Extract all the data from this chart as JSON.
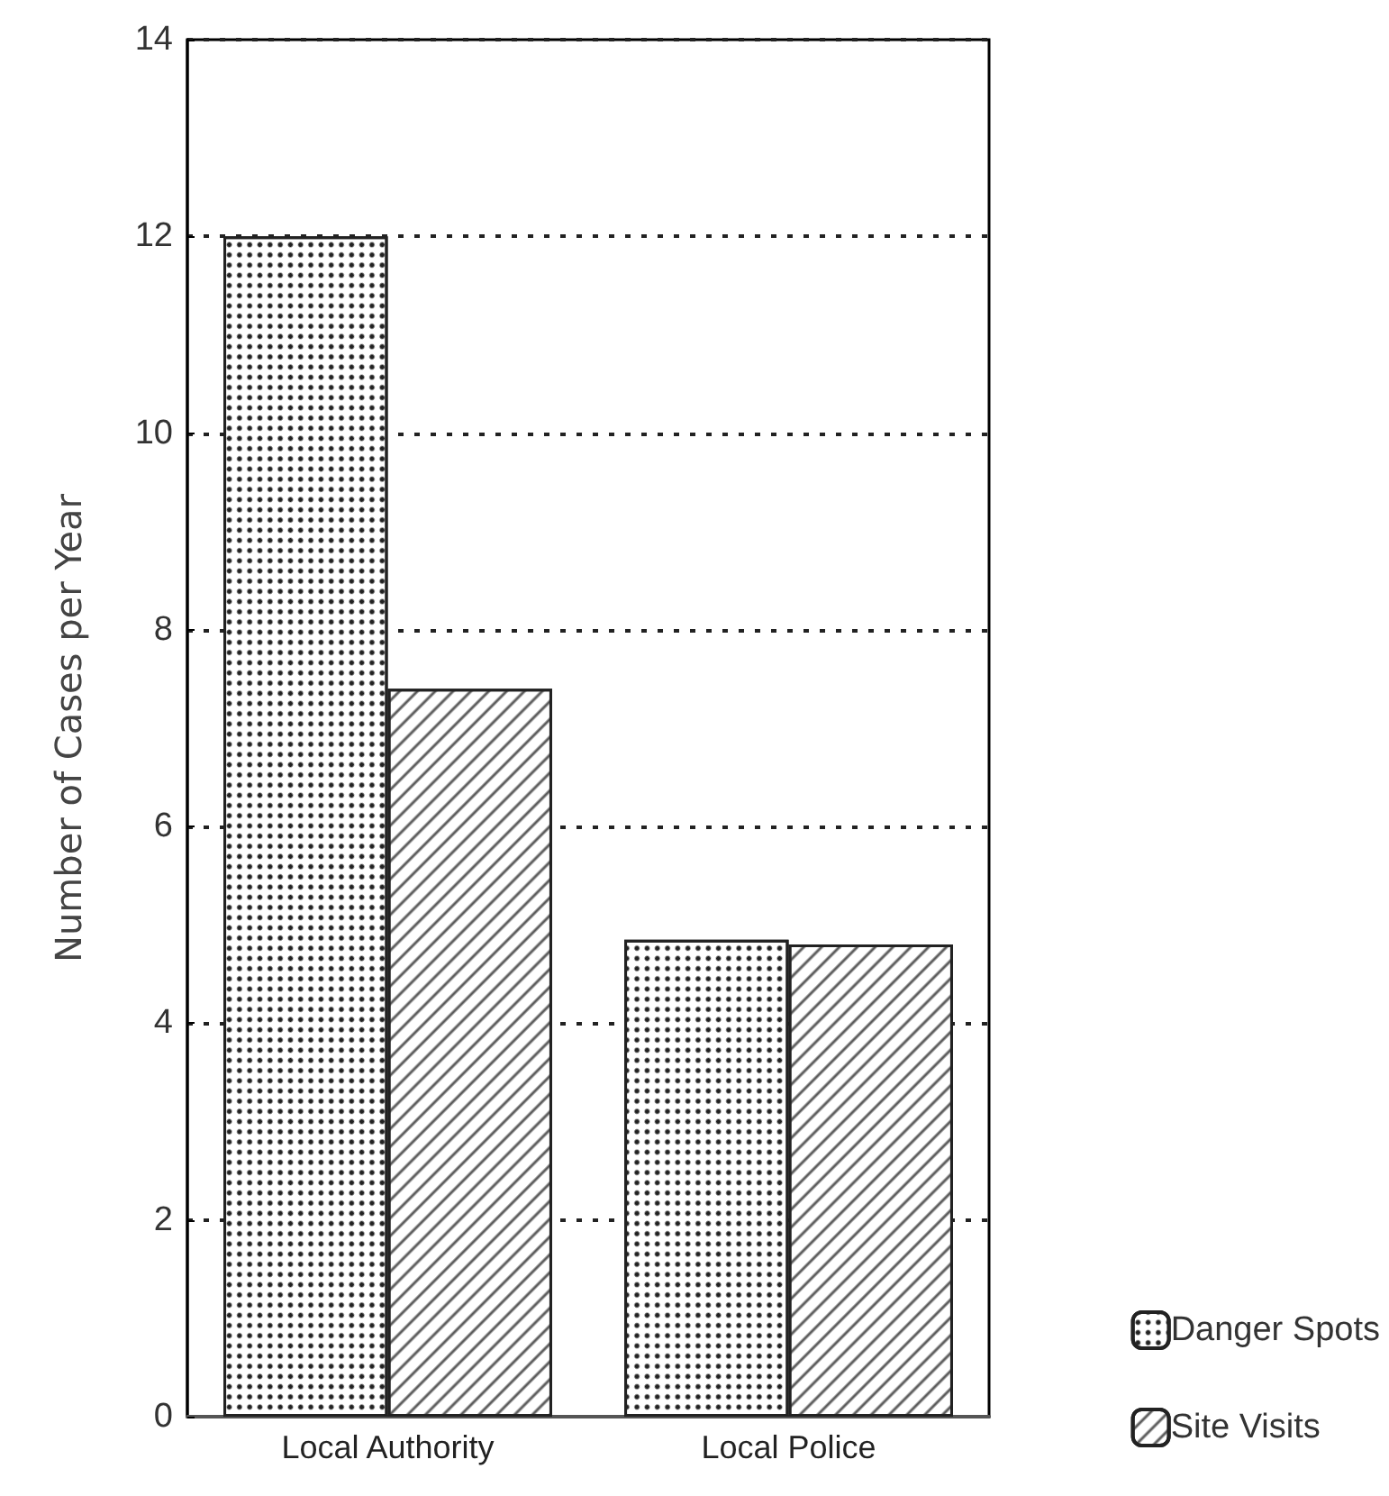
{
  "chart_data": {
    "type": "bar",
    "ylabel": "Number of Cases per Year",
    "categories": [
      "Local Authority",
      "Local Police"
    ],
    "series": [
      {
        "name": "Danger Spots",
        "color": "#ffffff",
        "values": [
          12,
          4.85
        ]
      },
      {
        "name": "Site Visits",
        "color": "#ffffff",
        "values": [
          7.4,
          4.8
        ]
      }
    ],
    "ylim": [
      0,
      14
    ],
    "yticks": [
      0,
      2,
      4,
      6,
      8,
      10,
      12,
      14
    ],
    "grid": "y",
    "legend": "bottom right"
  }
}
